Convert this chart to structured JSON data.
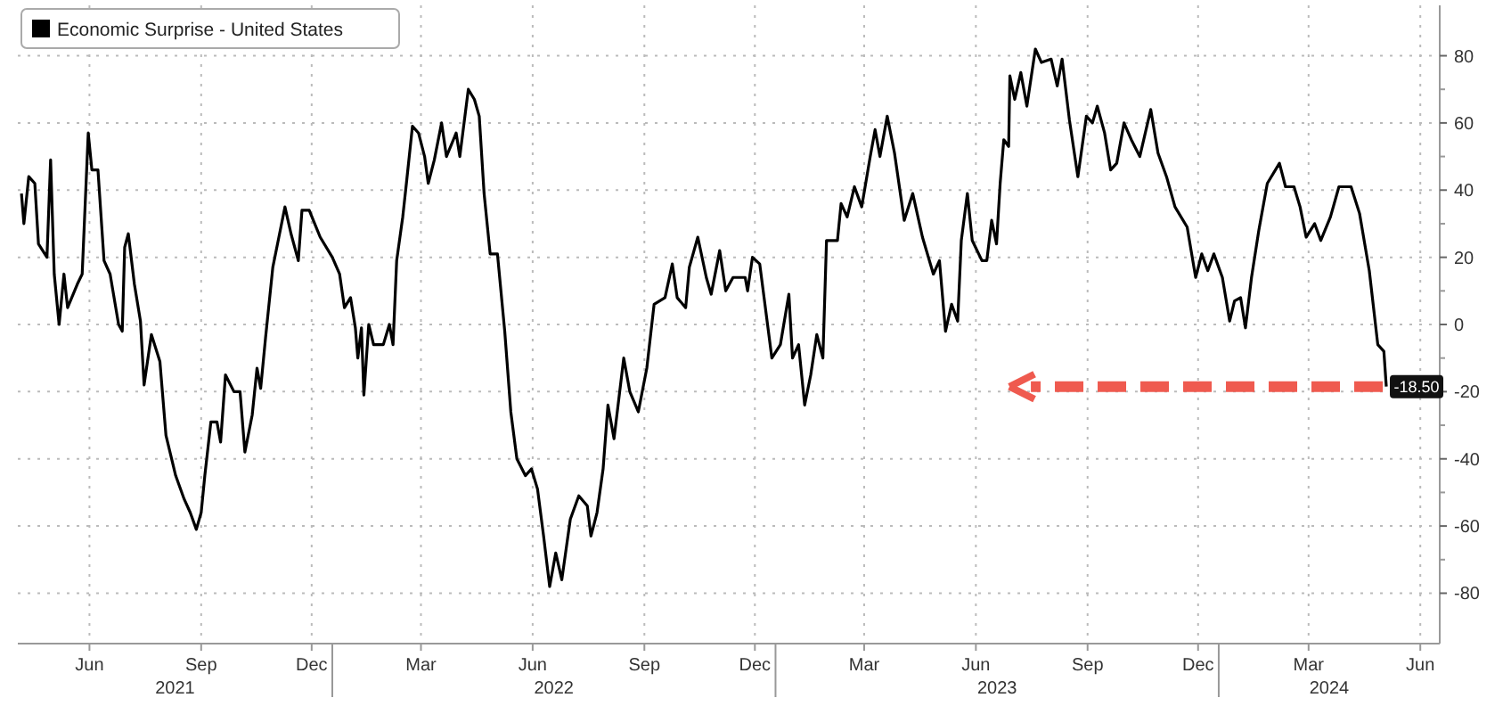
{
  "chart_data": {
    "type": "line",
    "legend": "top left",
    "grid": true,
    "xlim": [
      "2021-04-17",
      "2024-07-01"
    ],
    "xticks": [
      {
        "value": "2021-06-15",
        "label": "Jun"
      },
      {
        "value": "2021-09-15",
        "label": "Sep"
      },
      {
        "value": "2021-12-15",
        "label": "Dec"
      },
      {
        "value": "2022-03-15",
        "label": "Mar"
      },
      {
        "value": "2022-06-15",
        "label": "Jun"
      },
      {
        "value": "2022-09-15",
        "label": "Sep"
      },
      {
        "value": "2022-12-15",
        "label": "Dec"
      },
      {
        "value": "2023-03-15",
        "label": "Mar"
      },
      {
        "value": "2023-06-15",
        "label": "Jun"
      },
      {
        "value": "2023-09-15",
        "label": "Sep"
      },
      {
        "value": "2023-12-15",
        "label": "Dec"
      },
      {
        "value": "2024-03-15",
        "label": "Mar"
      },
      {
        "value": "2024-06-15",
        "label": "Jun"
      }
    ],
    "ylim": [
      -95,
      95
    ],
    "yticks": [
      -80,
      -60,
      -40,
      -20,
      0,
      20,
      40,
      60,
      80
    ],
    "annotations": [
      "2021",
      "2022",
      "2023",
      "2024",
      {
        "text": "-18.50",
        "x": "2024-05-18",
        "y": -18.5
      }
    ],
    "series": [
      {
        "name": "Economic Surprise - United States",
        "color": "#000000",
        "x": [
          "2021-04-20",
          "2021-04-22",
          "2021-04-26",
          "2021-05-01",
          "2021-05-04",
          "2021-05-11",
          "2021-05-14",
          "2021-05-17",
          "2021-05-21",
          "2021-05-25",
          "2021-05-28",
          "2021-06-05",
          "2021-06-09",
          "2021-06-14",
          "2021-06-17",
          "2021-06-22",
          "2021-06-27",
          "2021-07-02",
          "2021-07-09",
          "2021-07-12",
          "2021-07-14",
          "2021-07-17",
          "2021-07-22",
          "2021-07-27",
          "2021-07-30",
          "2021-08-05",
          "2021-08-12",
          "2021-08-17",
          "2021-08-25",
          "2021-09-01",
          "2021-09-06",
          "2021-09-11",
          "2021-09-15",
          "2021-09-18",
          "2021-09-23",
          "2021-09-28",
          "2021-10-01",
          "2021-10-05",
          "2021-10-12",
          "2021-10-17",
          "2021-10-21",
          "2021-10-27",
          "2021-10-31",
          "2021-11-03",
          "2021-11-07",
          "2021-11-13",
          "2021-11-18",
          "2021-11-23",
          "2021-11-28",
          "2021-12-04",
          "2021-12-07",
          "2021-12-13",
          "2021-12-22",
          "2022-01-01",
          "2022-01-07",
          "2022-01-11",
          "2022-01-16",
          "2022-01-20",
          "2022-01-22",
          "2022-01-25",
          "2022-01-27",
          "2022-01-31",
          "2022-02-04",
          "2022-02-12",
          "2022-02-17",
          "2022-02-20",
          "2022-02-23",
          "2022-02-28",
          "2022-03-03",
          "2022-03-08",
          "2022-03-13",
          "2022-03-18",
          "2022-03-21",
          "2022-03-26",
          "2022-04-01",
          "2022-04-05",
          "2022-04-13",
          "2022-04-16",
          "2022-04-23",
          "2022-04-28",
          "2022-05-02",
          "2022-05-06",
          "2022-05-11",
          "2022-05-17",
          "2022-05-23",
          "2022-05-28",
          "2022-06-02",
          "2022-06-09",
          "2022-06-14",
          "2022-06-19",
          "2022-06-24",
          "2022-06-29",
          "2022-07-04",
          "2022-07-09",
          "2022-07-16",
          "2022-07-23",
          "2022-07-30",
          "2022-08-02",
          "2022-08-07",
          "2022-08-12",
          "2022-08-16",
          "2022-08-21",
          "2022-08-29",
          "2022-09-03",
          "2022-09-10",
          "2022-09-17",
          "2022-09-23",
          "2022-10-02",
          "2022-10-08",
          "2022-10-12",
          "2022-10-19",
          "2022-10-22",
          "2022-10-29",
          "2022-11-05",
          "2022-11-09",
          "2022-11-16",
          "2022-11-21",
          "2022-11-27",
          "2022-12-07",
          "2022-12-09",
          "2022-12-13",
          "2022-12-19",
          "2022-12-29",
          "2023-01-05",
          "2023-01-12",
          "2023-01-15",
          "2023-01-20",
          "2023-01-25",
          "2023-01-30",
          "2023-02-04",
          "2023-02-09",
          "2023-02-12",
          "2023-02-21",
          "2023-02-24",
          "2023-03-01",
          "2023-03-07",
          "2023-03-13",
          "2023-03-20",
          "2023-03-24",
          "2023-03-28",
          "2023-04-03",
          "2023-04-09",
          "2023-04-17",
          "2023-04-24",
          "2023-05-02",
          "2023-05-11",
          "2023-05-16",
          "2023-05-21",
          "2023-05-26",
          "2023-05-31",
          "2023-06-03",
          "2023-06-08",
          "2023-06-12",
          "2023-06-20",
          "2023-06-24",
          "2023-06-28",
          "2023-07-02",
          "2023-07-05",
          "2023-07-08",
          "2023-07-12",
          "2023-07-13",
          "2023-07-17",
          "2023-07-22",
          "2023-07-27",
          "2023-08-03",
          "2023-08-08",
          "2023-08-16",
          "2023-08-21",
          "2023-08-25",
          "2023-08-31",
          "2023-09-07",
          "2023-09-14",
          "2023-09-19",
          "2023-09-23",
          "2023-09-29",
          "2023-10-04",
          "2023-10-09",
          "2023-10-15",
          "2023-10-21",
          "2023-10-28",
          "2023-11-06",
          "2023-11-12",
          "2023-11-19",
          "2023-11-26",
          "2023-12-06",
          "2023-12-13",
          "2023-12-18",
          "2023-12-23",
          "2023-12-28",
          "2024-01-04",
          "2024-01-10",
          "2024-01-14",
          "2024-01-19",
          "2024-01-23",
          "2024-01-28",
          "2024-02-03",
          "2024-02-10",
          "2024-02-20",
          "2024-02-25",
          "2024-03-03",
          "2024-03-08",
          "2024-03-13",
          "2024-03-20",
          "2024-03-25",
          "2024-04-02",
          "2024-04-09",
          "2024-04-19",
          "2024-04-26",
          "2024-05-04",
          "2024-05-11",
          "2024-05-16",
          "2024-05-18"
        ],
        "values": [
          39,
          30,
          44,
          42,
          24,
          20,
          49,
          15,
          0,
          15,
          5,
          12,
          15,
          57,
          46,
          46,
          19,
          15,
          0,
          -2,
          23,
          27,
          12,
          1,
          -18,
          -3,
          -11,
          -33,
          -45,
          -52,
          -56,
          -61,
          -56,
          -45,
          -29,
          -29,
          -35,
          -15,
          -20,
          -20,
          -38,
          -27,
          -13,
          -19,
          -4,
          17,
          26,
          35,
          27,
          19,
          34,
          34,
          26,
          20,
          15,
          5,
          8,
          -1,
          -10,
          -1,
          -21,
          0,
          -6,
          -6,
          0,
          -6,
          19,
          32,
          42,
          59,
          57,
          50,
          42,
          49,
          60,
          50,
          57,
          50,
          70,
          67,
          62,
          39,
          21,
          21,
          -2,
          -26,
          -40,
          -45,
          -43,
          -49,
          -63,
          -78,
          -68,
          -76,
          -58,
          -51,
          -54,
          -63,
          -56,
          -43,
          -24,
          -34,
          -10,
          -20,
          -26,
          -13,
          6,
          8,
          18,
          8,
          5,
          17,
          26,
          14,
          9,
          22,
          10,
          14,
          14,
          10,
          20,
          18,
          -10,
          -6,
          9,
          -10,
          -6,
          -24,
          -15,
          -3,
          -10,
          25,
          25,
          36,
          32,
          41,
          35,
          50,
          58,
          50,
          62,
          51,
          31,
          39,
          26,
          15,
          19,
          -2,
          6,
          1,
          25,
          39,
          25,
          19,
          19,
          31,
          24,
          42,
          55,
          53,
          74,
          67,
          75,
          65,
          82,
          78,
          79,
          71,
          79,
          61,
          44,
          62,
          60,
          65,
          57,
          46,
          48,
          60,
          55,
          50,
          64,
          51,
          44,
          35,
          29,
          14,
          21,
          16,
          21,
          14,
          1,
          7,
          8,
          -1,
          14,
          28,
          42,
          48,
          41,
          41,
          35,
          26,
          30,
          25,
          32,
          41,
          41,
          33,
          16,
          -6,
          -8,
          -18.5
        ]
      }
    ]
  }
}
